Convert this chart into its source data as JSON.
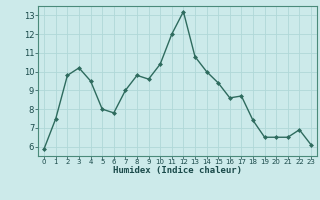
{
  "x": [
    0,
    1,
    2,
    3,
    4,
    5,
    6,
    7,
    8,
    9,
    10,
    11,
    12,
    13,
    14,
    15,
    16,
    17,
    18,
    19,
    20,
    21,
    22,
    23
  ],
  "y": [
    5.9,
    7.5,
    9.8,
    10.2,
    9.5,
    8.0,
    7.8,
    9.0,
    9.8,
    9.6,
    10.4,
    12.0,
    13.2,
    10.8,
    10.0,
    9.4,
    8.6,
    8.7,
    7.4,
    6.5,
    6.5,
    6.5,
    6.9,
    6.1
  ],
  "xlabel": "Humidex (Indice chaleur)",
  "ylim": [
    5.5,
    13.5
  ],
  "xlim": [
    -0.5,
    23.5
  ],
  "yticks": [
    6,
    7,
    8,
    9,
    10,
    11,
    12,
    13
  ],
  "xticks": [
    0,
    1,
    2,
    3,
    4,
    5,
    6,
    7,
    8,
    9,
    10,
    11,
    12,
    13,
    14,
    15,
    16,
    17,
    18,
    19,
    20,
    21,
    22,
    23
  ],
  "line_color": "#2e6b5e",
  "marker_color": "#2e6b5e",
  "bg_color": "#cceaea",
  "grid_color": "#b0d8d8",
  "xlabel_color": "#1a4a4a",
  "tick_color": "#1a4a4a",
  "spine_color": "#4a8a7a"
}
